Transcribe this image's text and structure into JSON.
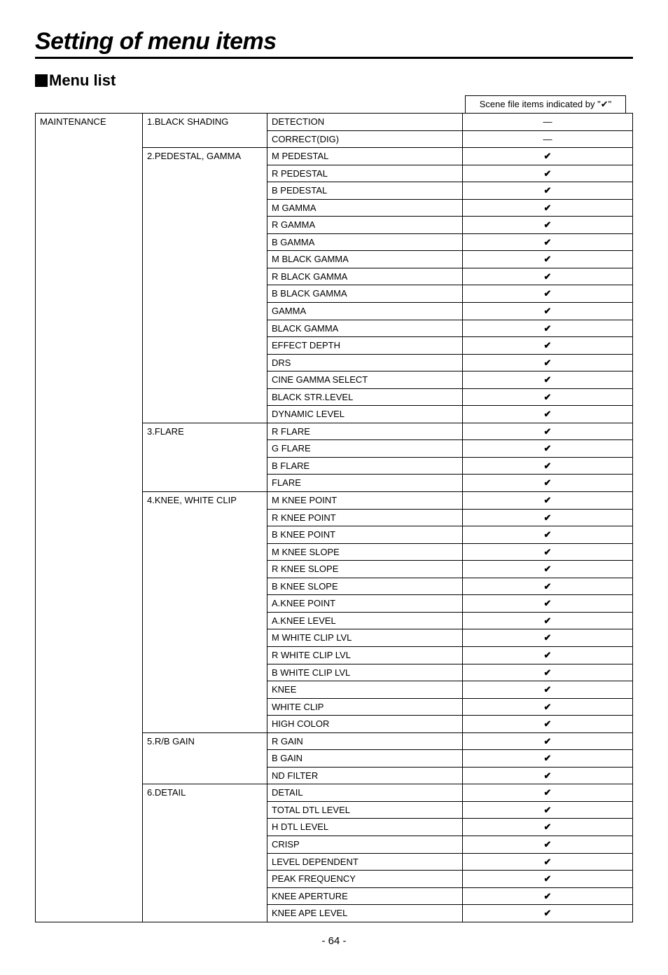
{
  "title": "Setting of menu items",
  "subhead": "Menu list",
  "headerCell": "Scene file items indicated by \"✔\"",
  "pageNumber": "- 64 -",
  "column1": "MAINTENANCE",
  "groups": [
    {
      "label": "1.BLACK SHADING",
      "rows": [
        {
          "name": "DETECTION",
          "mark": "—"
        },
        {
          "name": "CORRECT(DIG)",
          "mark": "—"
        }
      ]
    },
    {
      "label": "2.PEDESTAL, GAMMA",
      "rows": [
        {
          "name": "M PEDESTAL",
          "mark": "✔"
        },
        {
          "name": "R PEDESTAL",
          "mark": "✔"
        },
        {
          "name": "B PEDESTAL",
          "mark": "✔"
        },
        {
          "name": "M GAMMA",
          "mark": "✔"
        },
        {
          "name": "R GAMMA",
          "mark": "✔"
        },
        {
          "name": "B GAMMA",
          "mark": "✔"
        },
        {
          "name": "M BLACK GAMMA",
          "mark": "✔"
        },
        {
          "name": "R BLACK GAMMA",
          "mark": "✔"
        },
        {
          "name": "B BLACK GAMMA",
          "mark": "✔"
        },
        {
          "name": "GAMMA",
          "mark": "✔"
        },
        {
          "name": "BLACK GAMMA",
          "mark": "✔"
        },
        {
          "name": "EFFECT DEPTH",
          "mark": "✔"
        },
        {
          "name": "DRS",
          "mark": "✔"
        },
        {
          "name": "CINE GAMMA SELECT",
          "mark": "✔"
        },
        {
          "name": "BLACK STR.LEVEL",
          "mark": "✔"
        },
        {
          "name": "DYNAMIC LEVEL",
          "mark": "✔"
        }
      ]
    },
    {
      "label": "3.FLARE",
      "rows": [
        {
          "name": "R FLARE",
          "mark": "✔"
        },
        {
          "name": "G FLARE",
          "mark": "✔"
        },
        {
          "name": "B FLARE",
          "mark": "✔"
        },
        {
          "name": "FLARE",
          "mark": "✔"
        }
      ]
    },
    {
      "label": "4.KNEE, WHITE CLIP",
      "rows": [
        {
          "name": "M KNEE POINT",
          "mark": "✔"
        },
        {
          "name": "R KNEE POINT",
          "mark": "✔"
        },
        {
          "name": "B KNEE POINT",
          "mark": "✔"
        },
        {
          "name": "M KNEE SLOPE",
          "mark": "✔"
        },
        {
          "name": "R KNEE SLOPE",
          "mark": "✔"
        },
        {
          "name": "B KNEE SLOPE",
          "mark": "✔"
        },
        {
          "name": "A.KNEE POINT",
          "mark": "✔"
        },
        {
          "name": "A.KNEE LEVEL",
          "mark": "✔"
        },
        {
          "name": "M WHITE CLIP LVL",
          "mark": "✔"
        },
        {
          "name": "R WHITE CLIP LVL",
          "mark": "✔"
        },
        {
          "name": "B WHITE CLIP LVL",
          "mark": "✔"
        },
        {
          "name": "KNEE",
          "mark": "✔"
        },
        {
          "name": "WHITE CLIP",
          "mark": "✔"
        },
        {
          "name": "HIGH COLOR",
          "mark": "✔"
        }
      ]
    },
    {
      "label": "5.R/B GAIN",
      "rows": [
        {
          "name": "R GAIN",
          "mark": "✔"
        },
        {
          "name": "B GAIN",
          "mark": "✔"
        },
        {
          "name": "ND FILTER",
          "mark": "✔"
        }
      ]
    },
    {
      "label": "6.DETAIL",
      "rows": [
        {
          "name": "DETAIL",
          "mark": "✔"
        },
        {
          "name": "TOTAL DTL LEVEL",
          "mark": "✔"
        },
        {
          "name": "H DTL LEVEL",
          "mark": "✔"
        },
        {
          "name": "CRISP",
          "mark": "✔"
        },
        {
          "name": "LEVEL DEPENDENT",
          "mark": "✔"
        },
        {
          "name": "PEAK FREQUENCY",
          "mark": "✔"
        },
        {
          "name": "KNEE APERTURE",
          "mark": "✔"
        },
        {
          "name": "KNEE APE LEVEL",
          "mark": "✔"
        }
      ]
    }
  ]
}
